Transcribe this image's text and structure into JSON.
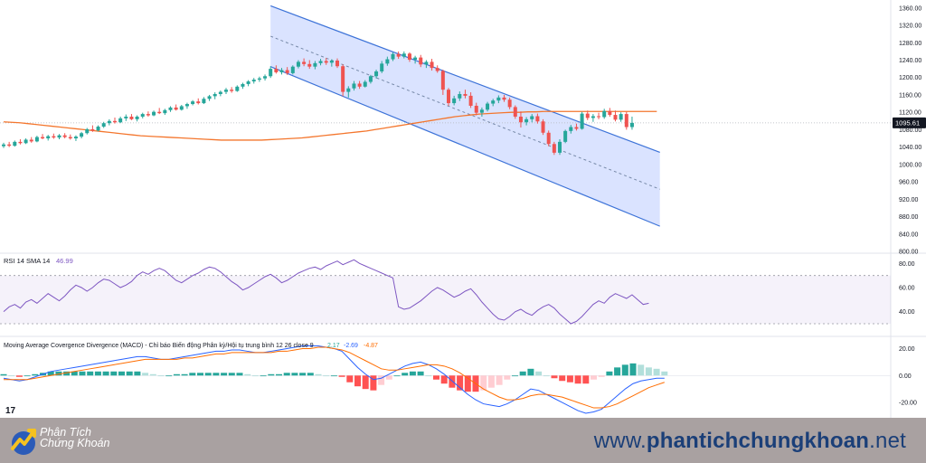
{
  "chart_data": [
    {
      "type": "candlestick",
      "pane": "price",
      "y_ticks": [
        "1360.00",
        "1320.00",
        "1280.00",
        "1240.00",
        "1200.00",
        "1160.00",
        "1120.00",
        "1080.00",
        "1040.00",
        "1000.00",
        "960.00",
        "920.00",
        "880.00",
        "840.00",
        "800.00"
      ],
      "ylim": [
        800,
        1370
      ],
      "last_price_label": "1095.61",
      "last_price": 1095.61,
      "candles": [
        {
          "o": 1042,
          "h": 1050,
          "l": 1038,
          "c": 1046
        },
        {
          "o": 1046,
          "h": 1052,
          "l": 1040,
          "c": 1043
        },
        {
          "o": 1043,
          "h": 1055,
          "l": 1041,
          "c": 1052
        },
        {
          "o": 1052,
          "h": 1058,
          "l": 1046,
          "c": 1049
        },
        {
          "o": 1049,
          "h": 1060,
          "l": 1047,
          "c": 1057
        },
        {
          "o": 1057,
          "h": 1063,
          "l": 1050,
          "c": 1053
        },
        {
          "o": 1053,
          "h": 1066,
          "l": 1051,
          "c": 1063
        },
        {
          "o": 1063,
          "h": 1070,
          "l": 1058,
          "c": 1060
        },
        {
          "o": 1060,
          "h": 1068,
          "l": 1055,
          "c": 1065
        },
        {
          "o": 1065,
          "h": 1071,
          "l": 1059,
          "c": 1062
        },
        {
          "o": 1062,
          "h": 1070,
          "l": 1058,
          "c": 1067
        },
        {
          "o": 1067,
          "h": 1072,
          "l": 1060,
          "c": 1063
        },
        {
          "o": 1063,
          "h": 1069,
          "l": 1057,
          "c": 1060
        },
        {
          "o": 1060,
          "h": 1067,
          "l": 1054,
          "c": 1064
        },
        {
          "o": 1064,
          "h": 1075,
          "l": 1060,
          "c": 1072
        },
        {
          "o": 1072,
          "h": 1084,
          "l": 1069,
          "c": 1081
        },
        {
          "o": 1081,
          "h": 1090,
          "l": 1075,
          "c": 1078
        },
        {
          "o": 1078,
          "h": 1090,
          "l": 1076,
          "c": 1087
        },
        {
          "o": 1087,
          "h": 1098,
          "l": 1084,
          "c": 1095
        },
        {
          "o": 1095,
          "h": 1104,
          "l": 1090,
          "c": 1100
        },
        {
          "o": 1100,
          "h": 1108,
          "l": 1094,
          "c": 1097
        },
        {
          "o": 1097,
          "h": 1110,
          "l": 1095,
          "c": 1106
        },
        {
          "o": 1106,
          "h": 1115,
          "l": 1100,
          "c": 1110
        },
        {
          "o": 1110,
          "h": 1116,
          "l": 1102,
          "c": 1104
        },
        {
          "o": 1104,
          "h": 1113,
          "l": 1099,
          "c": 1110
        },
        {
          "o": 1110,
          "h": 1119,
          "l": 1106,
          "c": 1116
        },
        {
          "o": 1116,
          "h": 1122,
          "l": 1110,
          "c": 1113
        },
        {
          "o": 1113,
          "h": 1124,
          "l": 1111,
          "c": 1121
        },
        {
          "o": 1121,
          "h": 1130,
          "l": 1116,
          "c": 1118
        },
        {
          "o": 1118,
          "h": 1128,
          "l": 1114,
          "c": 1125
        },
        {
          "o": 1125,
          "h": 1134,
          "l": 1121,
          "c": 1131
        },
        {
          "o": 1131,
          "h": 1138,
          "l": 1124,
          "c": 1126
        },
        {
          "o": 1126,
          "h": 1137,
          "l": 1124,
          "c": 1134
        },
        {
          "o": 1134,
          "h": 1142,
          "l": 1128,
          "c": 1139
        },
        {
          "o": 1139,
          "h": 1148,
          "l": 1136,
          "c": 1145
        },
        {
          "o": 1145,
          "h": 1152,
          "l": 1138,
          "c": 1141
        },
        {
          "o": 1141,
          "h": 1155,
          "l": 1139,
          "c": 1151
        },
        {
          "o": 1151,
          "h": 1160,
          "l": 1146,
          "c": 1157
        },
        {
          "o": 1157,
          "h": 1166,
          "l": 1150,
          "c": 1162
        },
        {
          "o": 1162,
          "h": 1170,
          "l": 1157,
          "c": 1167
        },
        {
          "o": 1167,
          "h": 1176,
          "l": 1162,
          "c": 1172
        },
        {
          "o": 1172,
          "h": 1178,
          "l": 1165,
          "c": 1169
        },
        {
          "o": 1169,
          "h": 1182,
          "l": 1167,
          "c": 1179
        },
        {
          "o": 1179,
          "h": 1188,
          "l": 1174,
          "c": 1185
        },
        {
          "o": 1185,
          "h": 1194,
          "l": 1180,
          "c": 1191
        },
        {
          "o": 1191,
          "h": 1199,
          "l": 1186,
          "c": 1195
        },
        {
          "o": 1195,
          "h": 1202,
          "l": 1190,
          "c": 1198
        },
        {
          "o": 1198,
          "h": 1207,
          "l": 1193,
          "c": 1203
        },
        {
          "o": 1203,
          "h": 1226,
          "l": 1199,
          "c": 1220
        },
        {
          "o": 1220,
          "h": 1228,
          "l": 1209,
          "c": 1212
        },
        {
          "o": 1212,
          "h": 1222,
          "l": 1207,
          "c": 1217
        },
        {
          "o": 1217,
          "h": 1224,
          "l": 1206,
          "c": 1210
        },
        {
          "o": 1210,
          "h": 1228,
          "l": 1207,
          "c": 1225
        },
        {
          "o": 1225,
          "h": 1240,
          "l": 1221,
          "c": 1236
        },
        {
          "o": 1236,
          "h": 1244,
          "l": 1226,
          "c": 1231
        },
        {
          "o": 1231,
          "h": 1240,
          "l": 1220,
          "c": 1225
        },
        {
          "o": 1225,
          "h": 1238,
          "l": 1219,
          "c": 1233
        },
        {
          "o": 1233,
          "h": 1243,
          "l": 1228,
          "c": 1238
        },
        {
          "o": 1238,
          "h": 1245,
          "l": 1229,
          "c": 1234
        },
        {
          "o": 1234,
          "h": 1242,
          "l": 1225,
          "c": 1239
        },
        {
          "o": 1239,
          "h": 1244,
          "l": 1222,
          "c": 1226
        },
        {
          "o": 1226,
          "h": 1230,
          "l": 1157,
          "c": 1167
        },
        {
          "o": 1167,
          "h": 1180,
          "l": 1154,
          "c": 1175
        },
        {
          "o": 1175,
          "h": 1192,
          "l": 1170,
          "c": 1186
        },
        {
          "o": 1186,
          "h": 1192,
          "l": 1174,
          "c": 1179
        },
        {
          "o": 1179,
          "h": 1194,
          "l": 1177,
          "c": 1190
        },
        {
          "o": 1190,
          "h": 1206,
          "l": 1186,
          "c": 1203
        },
        {
          "o": 1203,
          "h": 1218,
          "l": 1198,
          "c": 1214
        },
        {
          "o": 1214,
          "h": 1238,
          "l": 1210,
          "c": 1232
        },
        {
          "o": 1232,
          "h": 1248,
          "l": 1227,
          "c": 1242
        },
        {
          "o": 1242,
          "h": 1258,
          "l": 1238,
          "c": 1254
        },
        {
          "o": 1254,
          "h": 1260,
          "l": 1243,
          "c": 1248
        },
        {
          "o": 1248,
          "h": 1260,
          "l": 1244,
          "c": 1255
        },
        {
          "o": 1255,
          "h": 1258,
          "l": 1236,
          "c": 1241
        },
        {
          "o": 1241,
          "h": 1250,
          "l": 1232,
          "c": 1246
        },
        {
          "o": 1246,
          "h": 1252,
          "l": 1224,
          "c": 1230
        },
        {
          "o": 1230,
          "h": 1240,
          "l": 1222,
          "c": 1236
        },
        {
          "o": 1236,
          "h": 1243,
          "l": 1216,
          "c": 1222
        },
        {
          "o": 1222,
          "h": 1228,
          "l": 1211,
          "c": 1215
        },
        {
          "o": 1215,
          "h": 1218,
          "l": 1160,
          "c": 1172
        },
        {
          "o": 1172,
          "h": 1176,
          "l": 1135,
          "c": 1141
        },
        {
          "o": 1141,
          "h": 1158,
          "l": 1136,
          "c": 1152
        },
        {
          "o": 1152,
          "h": 1168,
          "l": 1146,
          "c": 1162
        },
        {
          "o": 1162,
          "h": 1172,
          "l": 1152,
          "c": 1158
        },
        {
          "o": 1158,
          "h": 1166,
          "l": 1130,
          "c": 1135
        },
        {
          "o": 1135,
          "h": 1142,
          "l": 1113,
          "c": 1119
        },
        {
          "o": 1119,
          "h": 1131,
          "l": 1110,
          "c": 1126
        },
        {
          "o": 1126,
          "h": 1144,
          "l": 1122,
          "c": 1140
        },
        {
          "o": 1140,
          "h": 1151,
          "l": 1134,
          "c": 1147
        },
        {
          "o": 1147,
          "h": 1159,
          "l": 1141,
          "c": 1154
        },
        {
          "o": 1154,
          "h": 1160,
          "l": 1144,
          "c": 1149
        },
        {
          "o": 1149,
          "h": 1154,
          "l": 1127,
          "c": 1132
        },
        {
          "o": 1132,
          "h": 1136,
          "l": 1105,
          "c": 1110
        },
        {
          "o": 1110,
          "h": 1122,
          "l": 1085,
          "c": 1097
        },
        {
          "o": 1097,
          "h": 1109,
          "l": 1090,
          "c": 1104
        },
        {
          "o": 1104,
          "h": 1116,
          "l": 1097,
          "c": 1111
        },
        {
          "o": 1111,
          "h": 1117,
          "l": 1094,
          "c": 1099
        },
        {
          "o": 1099,
          "h": 1104,
          "l": 1068,
          "c": 1073
        },
        {
          "o": 1073,
          "h": 1078,
          "l": 1042,
          "c": 1047
        },
        {
          "o": 1047,
          "h": 1052,
          "l": 1022,
          "c": 1027
        },
        {
          "o": 1027,
          "h": 1058,
          "l": 1022,
          "c": 1052
        },
        {
          "o": 1052,
          "h": 1080,
          "l": 1049,
          "c": 1077
        },
        {
          "o": 1077,
          "h": 1091,
          "l": 1071,
          "c": 1086
        },
        {
          "o": 1086,
          "h": 1094,
          "l": 1078,
          "c": 1082
        },
        {
          "o": 1082,
          "h": 1121,
          "l": 1080,
          "c": 1117
        },
        {
          "o": 1117,
          "h": 1124,
          "l": 1102,
          "c": 1107
        },
        {
          "o": 1107,
          "h": 1116,
          "l": 1098,
          "c": 1111
        },
        {
          "o": 1111,
          "h": 1119,
          "l": 1104,
          "c": 1109
        },
        {
          "o": 1109,
          "h": 1128,
          "l": 1105,
          "c": 1123
        },
        {
          "o": 1123,
          "h": 1130,
          "l": 1110,
          "c": 1114
        },
        {
          "o": 1114,
          "h": 1124,
          "l": 1099,
          "c": 1103
        },
        {
          "o": 1103,
          "h": 1120,
          "l": 1098,
          "c": 1116
        },
        {
          "o": 1116,
          "h": 1121,
          "l": 1080,
          "c": 1086
        },
        {
          "o": 1086,
          "h": 1110,
          "l": 1080,
          "c": 1095.61
        }
      ],
      "sma_series": [
        1098,
        1097,
        1096,
        1094,
        1092,
        1090,
        1088,
        1086,
        1084,
        1082,
        1080,
        1078,
        1076,
        1074,
        1072,
        1070,
        1068,
        1066,
        1065,
        1064,
        1063,
        1062,
        1061,
        1060,
        1059,
        1058,
        1057,
        1056,
        1056,
        1056,
        1056,
        1056,
        1056,
        1057,
        1058,
        1059,
        1060,
        1061,
        1063,
        1065,
        1067,
        1069,
        1071,
        1073,
        1075,
        1077,
        1080,
        1083,
        1086,
        1089,
        1092,
        1095,
        1098,
        1101,
        1104,
        1107,
        1110,
        1112,
        1114,
        1116,
        1117,
        1118,
        1119,
        1120,
        1120,
        1121,
        1121,
        1122,
        1122,
        1122,
        1122,
        1122,
        1122,
        1122,
        1122,
        1122,
        1122,
        1122,
        1122,
        1122,
        1122,
        1122
      ],
      "channel": {
        "upper": [
          [
            48,
            1365
          ],
          [
            118,
            1028
          ]
        ],
        "lower": [
          [
            48,
            1225
          ],
          [
            118,
            858
          ]
        ],
        "middle": [
          [
            48,
            1295
          ],
          [
            118,
            943
          ]
        ]
      },
      "colors": {
        "up": "#26a69a",
        "down": "#ef5350",
        "sma": "#f4762d",
        "channel_fill": "#d3deff",
        "channel_line": "#3d73d8",
        "mid_line": "#7789a8",
        "last_price_bg": "#131722"
      }
    },
    {
      "type": "line",
      "pane": "rsi",
      "legend": "RSI 14 SMA 14",
      "legend_value": "46.99",
      "y_ticks": [
        "80.00",
        "60.00",
        "40.00"
      ],
      "ylim": [
        24,
        84
      ],
      "band": [
        30,
        70
      ],
      "values": [
        40,
        44,
        46,
        43,
        48,
        50,
        47,
        51,
        55,
        52,
        49,
        53,
        58,
        62,
        60,
        57,
        60,
        64,
        67,
        66,
        63,
        60,
        62,
        65,
        70,
        73,
        71,
        74,
        76,
        74,
        70,
        66,
        64,
        67,
        70,
        72,
        75,
        77,
        76,
        73,
        69,
        65,
        62,
        58,
        60,
        63,
        66,
        69,
        71,
        68,
        64,
        66,
        69,
        72,
        74,
        76,
        77,
        75,
        78,
        80,
        82,
        79,
        81,
        83,
        80,
        78,
        76,
        74,
        72,
        70,
        68,
        44,
        42,
        43,
        46,
        49,
        53,
        57,
        60,
        58,
        55,
        52,
        54,
        57,
        59,
        54,
        48,
        43,
        38,
        34,
        33,
        36,
        40,
        42,
        39,
        37,
        41,
        44,
        46,
        43,
        38,
        34,
        30,
        32,
        36,
        41,
        46,
        49,
        47,
        52,
        55,
        53,
        51,
        54,
        50,
        46,
        47
      ]
    },
    {
      "type": "bar+line",
      "pane": "macd",
      "legend": "Moving Average Covergence Divergence (MACD) - Chỉ báo Biến động Phân kỳ/Hội tụ trung bình 12 26 close 9",
      "legend_values": [
        "2.17",
        "-2.69",
        "-4.87"
      ],
      "y_ticks": [
        "20.00",
        "0.00",
        "-20.00"
      ],
      "ylim": [
        -30,
        25
      ],
      "macd": [
        -2,
        -3,
        -4,
        -3,
        -1,
        1,
        3,
        4,
        5,
        6,
        7,
        8,
        9,
        10,
        11,
        12,
        13,
        14,
        14,
        13,
        12,
        12,
        13,
        14,
        15,
        16,
        17,
        18,
        18,
        19,
        19,
        18,
        17,
        17,
        18,
        19,
        20,
        21,
        22,
        22,
        22,
        21,
        20,
        18,
        12,
        6,
        1,
        -3,
        -2,
        1,
        4,
        7,
        9,
        10,
        8,
        5,
        1,
        -4,
        -9,
        -14,
        -18,
        -21,
        -22,
        -23,
        -21,
        -18,
        -14,
        -10,
        -11,
        -14,
        -17,
        -20,
        -23,
        -26,
        -28,
        -27,
        -25,
        -20,
        -15,
        -10,
        -6,
        -4,
        -3,
        -2,
        -2
      ],
      "signal": [
        -3,
        -3,
        -3,
        -3,
        -2,
        -1,
        0,
        1,
        2,
        3,
        4,
        5,
        6,
        7,
        8,
        9,
        10,
        11,
        12,
        12,
        12,
        12,
        12,
        13,
        13,
        14,
        15,
        16,
        16,
        17,
        17,
        17,
        17,
        17,
        17,
        18,
        18,
        19,
        20,
        20,
        21,
        21,
        20,
        19,
        17,
        14,
        11,
        8,
        5,
        4,
        4,
        5,
        6,
        7,
        8,
        8,
        7,
        5,
        2,
        -2,
        -6,
        -10,
        -13,
        -16,
        -18,
        -18,
        -17,
        -15,
        -14,
        -14,
        -15,
        -16,
        -18,
        -20,
        -22,
        -24,
        -24,
        -23,
        -21,
        -18,
        -15,
        -12,
        -9,
        -7,
        -5
      ],
      "histogram": [
        1,
        0,
        -1,
        0,
        1,
        2,
        3,
        3,
        3,
        3,
        3,
        3,
        3,
        3,
        3,
        3,
        3,
        3,
        2,
        1,
        0,
        0,
        1,
        1,
        2,
        2,
        2,
        2,
        2,
        2,
        2,
        1,
        0,
        0,
        1,
        1,
        2,
        2,
        2,
        2,
        1,
        0,
        0,
        -1,
        -5,
        -8,
        -10,
        -11,
        -7,
        -3,
        0,
        2,
        3,
        3,
        0,
        -3,
        -6,
        -9,
        -11,
        -12,
        -12,
        -11,
        -9,
        -7,
        -3,
        0,
        3,
        5,
        3,
        0,
        -2,
        -4,
        -5,
        -6,
        -6,
        -3,
        -1,
        3,
        6,
        8,
        9,
        8,
        6,
        5,
        3
      ],
      "colors": {
        "macd": "#2962ff",
        "signal": "#ff6d00",
        "hist_up_strong": "#26a69a",
        "hist_up_weak": "#b2dfdb",
        "hist_down_strong": "#ff5252",
        "hist_down_weak": "#ffcdd2"
      }
    }
  ],
  "footer": {
    "logo_line1": "Phân Tích",
    "logo_line2": "Chứng Khoán",
    "url_prefix": "www.",
    "url_bold": "phantichchungkhoan",
    "url_suffix": ".net"
  },
  "tv_logo": "17"
}
